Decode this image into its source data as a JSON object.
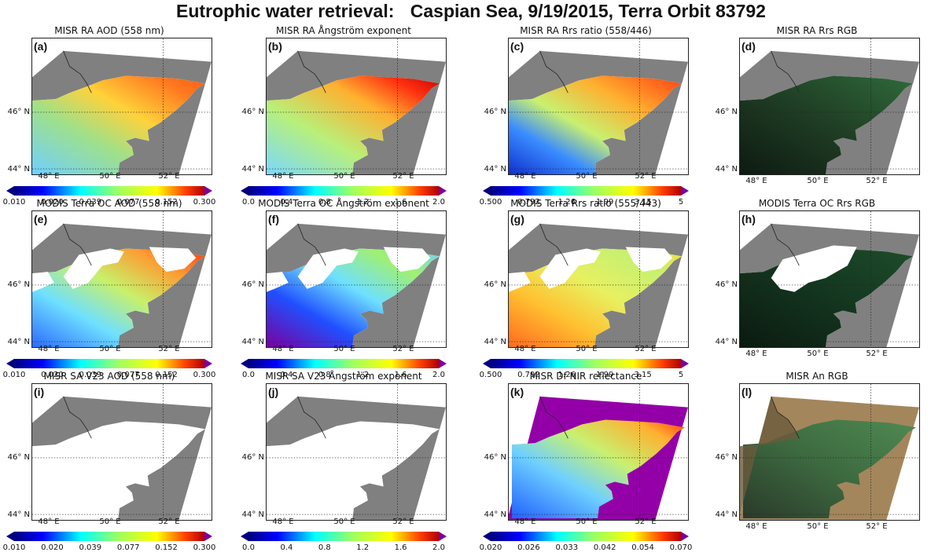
{
  "title": {
    "part1": "Eutrophic water retrieval:",
    "part2": "Caspian Sea, 9/19/2015, Terra Orbit 83792"
  },
  "axes": {
    "lat_labels": [
      "46° N",
      "44° N"
    ],
    "lon_labels": [
      "48° E",
      "50° E",
      "52° E"
    ]
  },
  "colorbars": {
    "aod": [
      "0.010",
      "0.020",
      "0.039",
      "0.077",
      "0.152",
      "0.300"
    ],
    "angstrom": [
      "0.0",
      "0.4",
      "0.8",
      "1.2",
      "1.6",
      "2.0"
    ],
    "rrs_ratio": [
      "0.500",
      "0.792",
      "1.26",
      "1.99",
      "3.15",
      "5"
    ],
    "nir": [
      "0.020",
      "0.026",
      "0.033",
      "0.042",
      "0.054",
      "0.070"
    ]
  },
  "colors": {
    "land_gray": "#808080",
    "nir_purple": "#9400a8",
    "rgb_dark_green": "#1f3d24",
    "rgb_desert": "#a4865c"
  },
  "panels": [
    {
      "label": "(a)",
      "title": "MISR RA AOD (558 nm)",
      "style": "jet-aod",
      "colorbar": "aod"
    },
    {
      "label": "(b)",
      "title": "MISR RA  Ångström exponent",
      "style": "jet-ang",
      "colorbar": "angstrom"
    },
    {
      "label": "(c)",
      "title": "MISR RA Rrs ratio (558/446)",
      "style": "jet-rrs",
      "colorbar": "rrs_ratio"
    },
    {
      "label": "(d)",
      "title": "MISR RA Rrs RGB",
      "style": "rgb-misr",
      "colorbar": null
    },
    {
      "label": "(e)",
      "title": "MODIS Terra OC AOD (558 nm)",
      "style": "modis-aod",
      "colorbar": "aod"
    },
    {
      "label": "(f)",
      "title": "MODIS Terra OC Ångström exponent",
      "style": "modis-ang",
      "colorbar": "angstrom"
    },
    {
      "label": "(g)",
      "title": "MODIS Terra Rrs ratio (555/443)",
      "style": "modis-rrs",
      "colorbar": "rrs_ratio"
    },
    {
      "label": "(h)",
      "title": "MODIS Terra OC Rrs RGB",
      "style": "rgb-modis",
      "colorbar": null
    },
    {
      "label": "(i)",
      "title": "MISR SA V23 AOD (558 nm)",
      "style": "empty",
      "colorbar": "aod"
    },
    {
      "label": "(j)",
      "title": "MISR SA V23 Ångström exponent",
      "style": "empty",
      "colorbar": "angstrom"
    },
    {
      "label": "(k)",
      "title": "MISR Df NIR  reflectance",
      "style": "nir",
      "colorbar": "nir"
    },
    {
      "label": "(l)",
      "title": "MISR An RGB",
      "style": "rgb-an",
      "colorbar": null
    }
  ]
}
